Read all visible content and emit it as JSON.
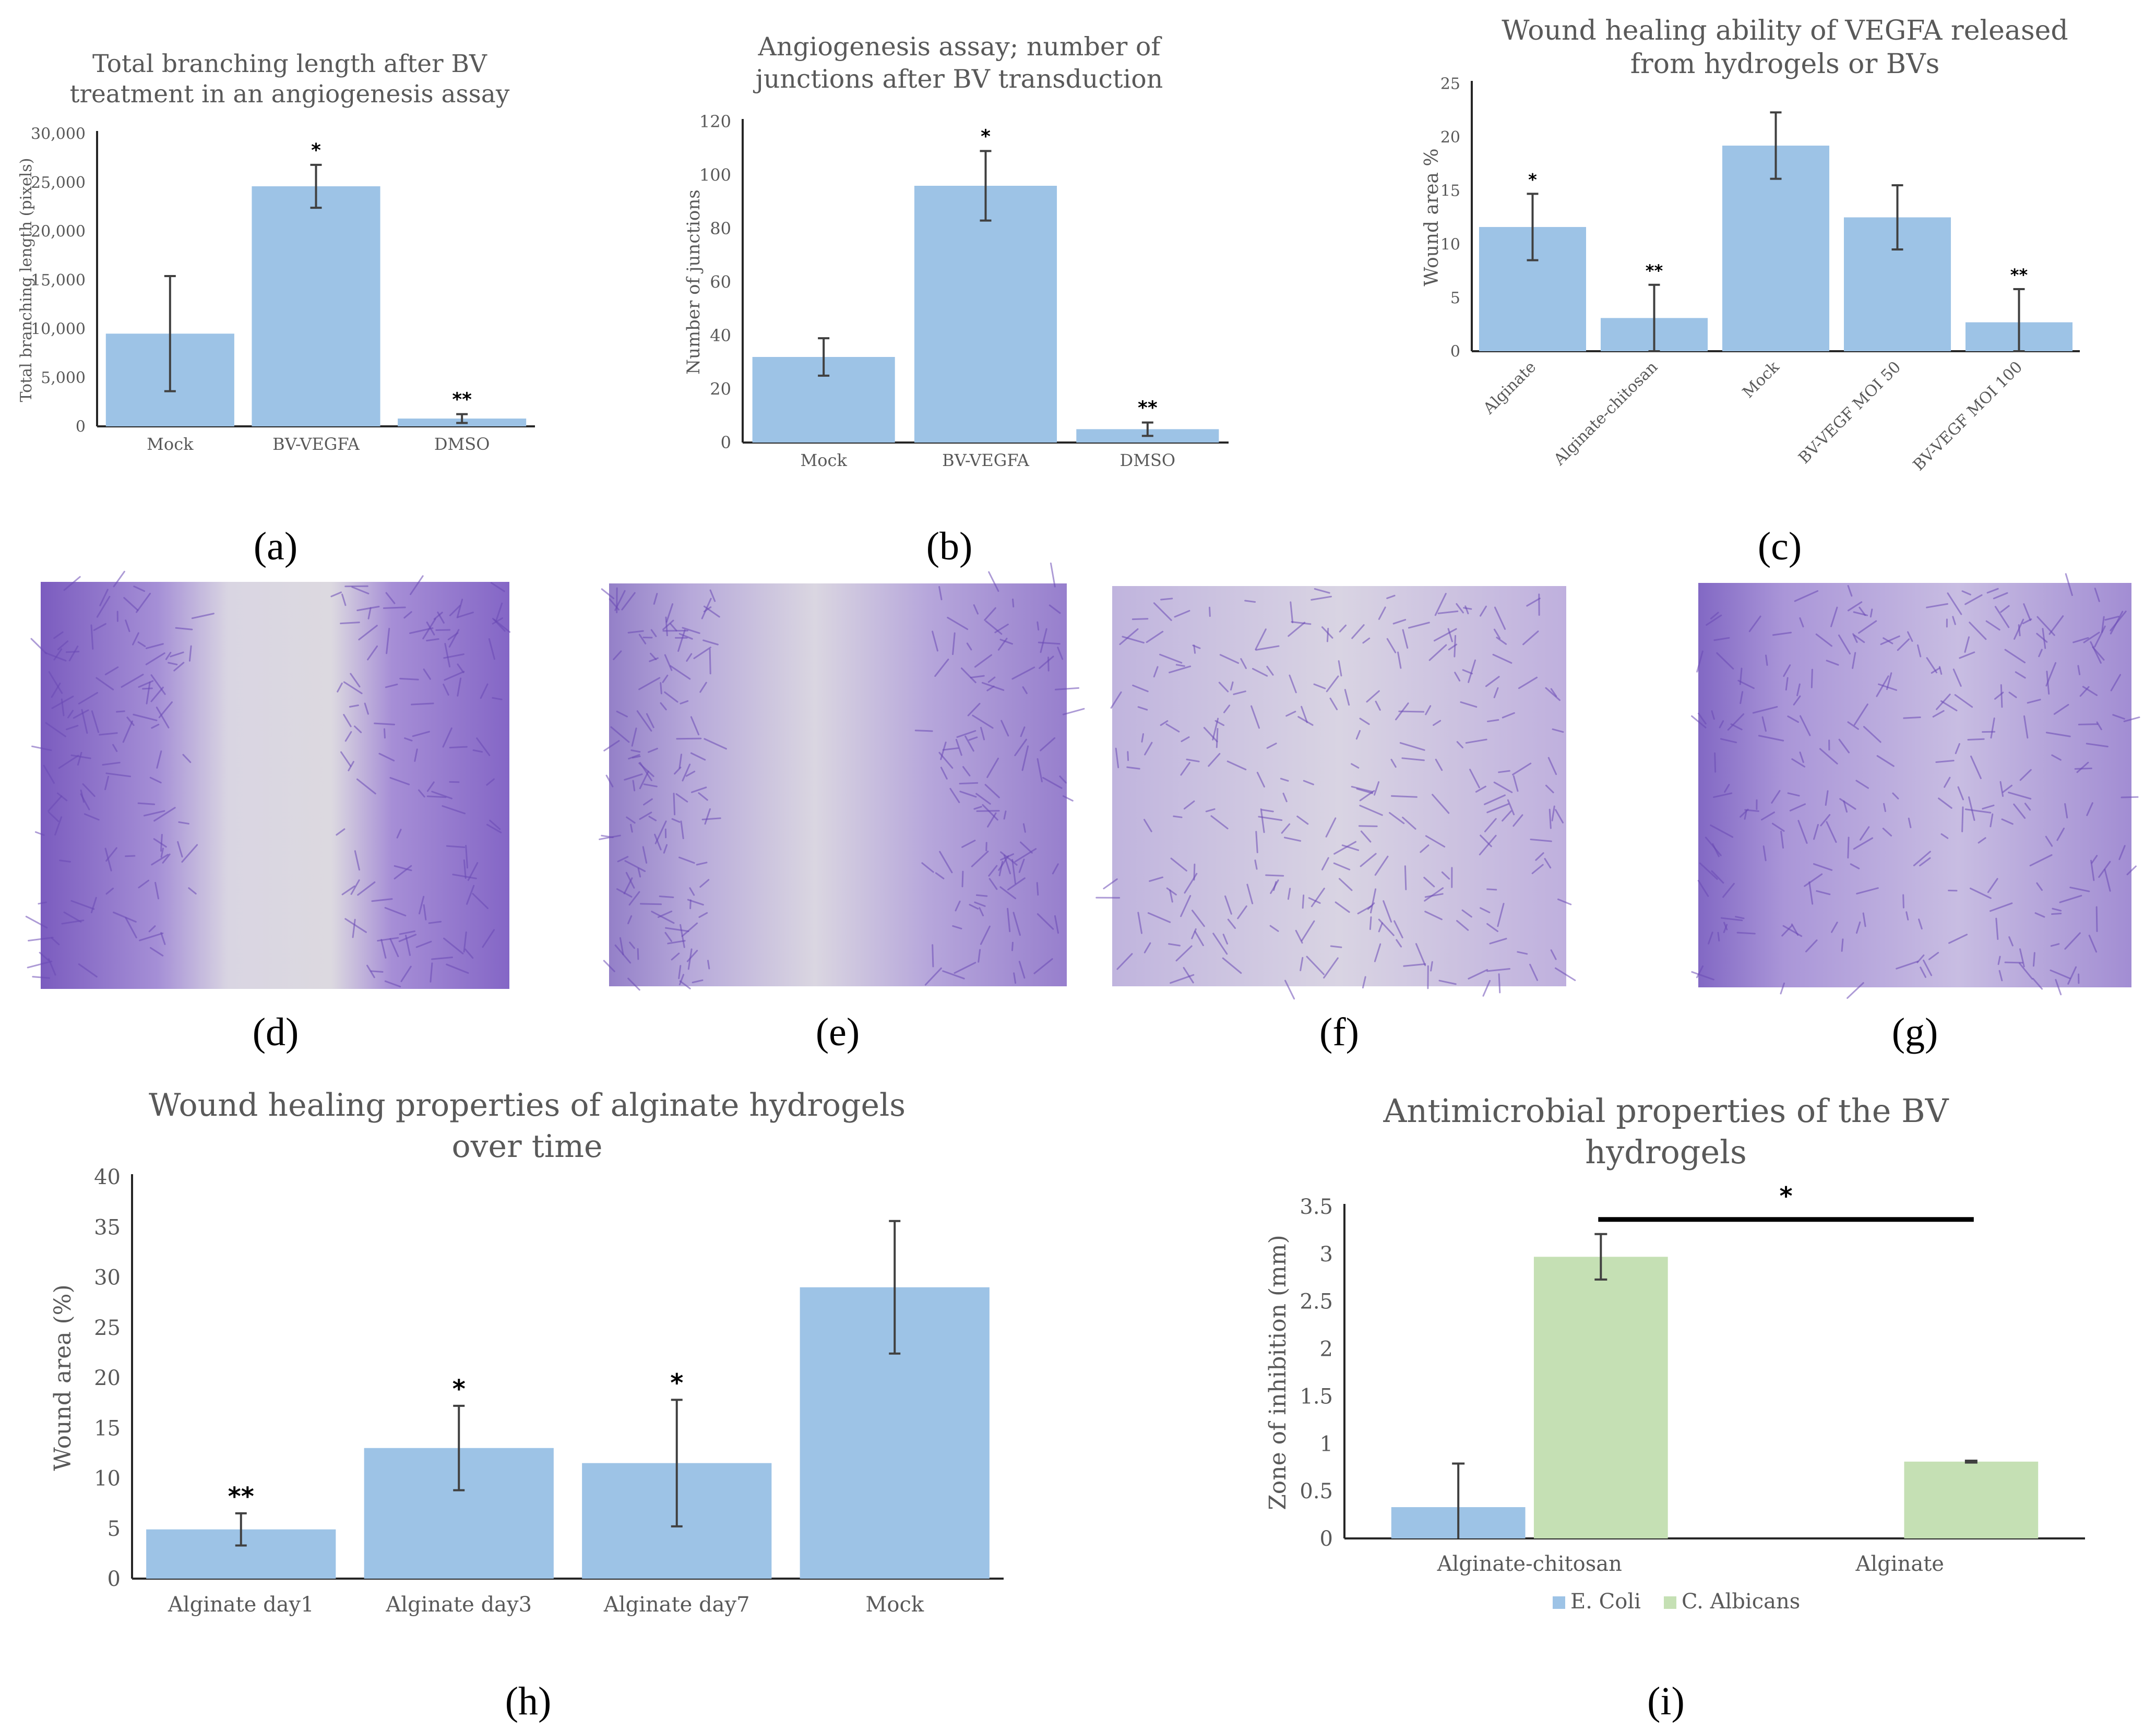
{
  "colors": {
    "bar_blue": "#9dc3e6",
    "bar_green": "#c5e0b4",
    "text": "#595959",
    "axis": "#262626"
  },
  "panels": {
    "a": "(a)",
    "b": "(b)",
    "c": "(c)",
    "d": "(d)",
    "e": "(e)",
    "f": "(f)",
    "g": "(g)",
    "h": "(h)",
    "i": "(i)"
  },
  "micrographs": [
    {
      "id": "d",
      "label": "(d)",
      "content": "scratch-wound micrograph, wide gap"
    },
    {
      "id": "e",
      "label": "(e)",
      "content": "scratch-wound micrograph"
    },
    {
      "id": "f",
      "label": "(f)",
      "content": "scratch-wound micrograph"
    },
    {
      "id": "g",
      "label": "(g)",
      "content": "scratch-wound micrograph, closed"
    }
  ],
  "chart_data": [
    {
      "id": "a",
      "type": "bar",
      "title": [
        "Total branching length after BV",
        "treatment in an angiogenesis assay"
      ],
      "xlabel": "",
      "ylabel": "Total branching length (pixels)",
      "ylim": [
        0,
        30000
      ],
      "yticks": [
        0,
        5000,
        10000,
        15000,
        20000,
        25000,
        30000
      ],
      "ytick_labels": [
        "0",
        "5,000",
        "10,000",
        "15,000",
        "20,000",
        "25,000",
        "30,000"
      ],
      "categories": [
        "Mock",
        "BV-VEGFA",
        "DMSO"
      ],
      "values": [
        9500,
        24600,
        800
      ],
      "errors": [
        5900,
        2200,
        450
      ],
      "annotations": [
        "",
        "*",
        "**"
      ]
    },
    {
      "id": "b",
      "type": "bar",
      "title": [
        "Angiogenesis assay; number of",
        "junctions after BV transduction"
      ],
      "xlabel": "",
      "ylabel": "Number of junctions",
      "ylim": [
        0,
        120
      ],
      "yticks": [
        0,
        20,
        40,
        60,
        80,
        100,
        120
      ],
      "ytick_labels": [
        "0",
        "20",
        "40",
        "60",
        "80",
        "100",
        "120"
      ],
      "categories": [
        "Mock",
        "BV-VEGFA",
        "DMSO"
      ],
      "values": [
        32,
        96,
        5
      ],
      "errors": [
        7,
        13,
        2.5
      ],
      "annotations": [
        "",
        "*",
        "**"
      ]
    },
    {
      "id": "c",
      "type": "bar",
      "title": [
        "Wound healing ability of VEGFA released",
        "from hydrogels or BVs"
      ],
      "xlabel": "",
      "ylabel": "Wound area %",
      "ylim": [
        0,
        25
      ],
      "yticks": [
        0,
        5,
        10,
        15,
        20,
        25
      ],
      "ytick_labels": [
        "0",
        "5",
        "10",
        "15",
        "20",
        "25"
      ],
      "categories": [
        "Alginate",
        "Alginate-chitosan",
        "Mock",
        "BV-VEGF MOI 50",
        "BV-VEGF MOI 100"
      ],
      "values": [
        11.6,
        3.1,
        19.2,
        12.5,
        2.7
      ],
      "errors": [
        3.1,
        3.1,
        3.1,
        3.0,
        3.1
      ],
      "annotations": [
        "*",
        "**",
        "",
        "",
        "**"
      ]
    },
    {
      "id": "h",
      "type": "bar",
      "title": [
        "Wound healing properties of alginate hydrogels",
        "over time"
      ],
      "xlabel": "",
      "ylabel": "Wound area (%)",
      "ylim": [
        0,
        40
      ],
      "yticks": [
        0,
        5,
        10,
        15,
        20,
        25,
        30,
        35,
        40
      ],
      "ytick_labels": [
        "0",
        "5",
        "10",
        "15",
        "20",
        "25",
        "30",
        "35",
        "40"
      ],
      "categories": [
        "Alginate day1",
        "Alginate day3",
        "Alginate day7",
        "Mock"
      ],
      "values": [
        4.9,
        13.0,
        11.5,
        29.0
      ],
      "errors": [
        1.6,
        4.2,
        6.3,
        6.6
      ],
      "annotations": [
        "**",
        "*",
        "*",
        ""
      ]
    },
    {
      "id": "i",
      "type": "bar",
      "title": [
        "Antimicrobial properties of the BV",
        "hydrogels"
      ],
      "xlabel": "",
      "ylabel": "Zone of inhibition (mm)",
      "ylim": [
        0,
        3.5
      ],
      "yticks": [
        0,
        0.5,
        1,
        1.5,
        2,
        2.5,
        3,
        3.5
      ],
      "ytick_labels": [
        "0",
        "0.5",
        "1",
        "1.5",
        "2",
        "2.5",
        "3",
        "3.5"
      ],
      "categories": [
        "Alginate-chitosan",
        "Alginate"
      ],
      "series": [
        {
          "name": "E. Coli",
          "values": [
            0.33,
            0
          ],
          "errors": [
            0.46,
            0
          ]
        },
        {
          "name": "C. Albicans",
          "values": [
            2.97,
            0.81
          ],
          "errors": [
            0.24,
            0.01
          ]
        }
      ],
      "significance": {
        "label": "*",
        "from": 0,
        "to": 1
      }
    }
  ]
}
